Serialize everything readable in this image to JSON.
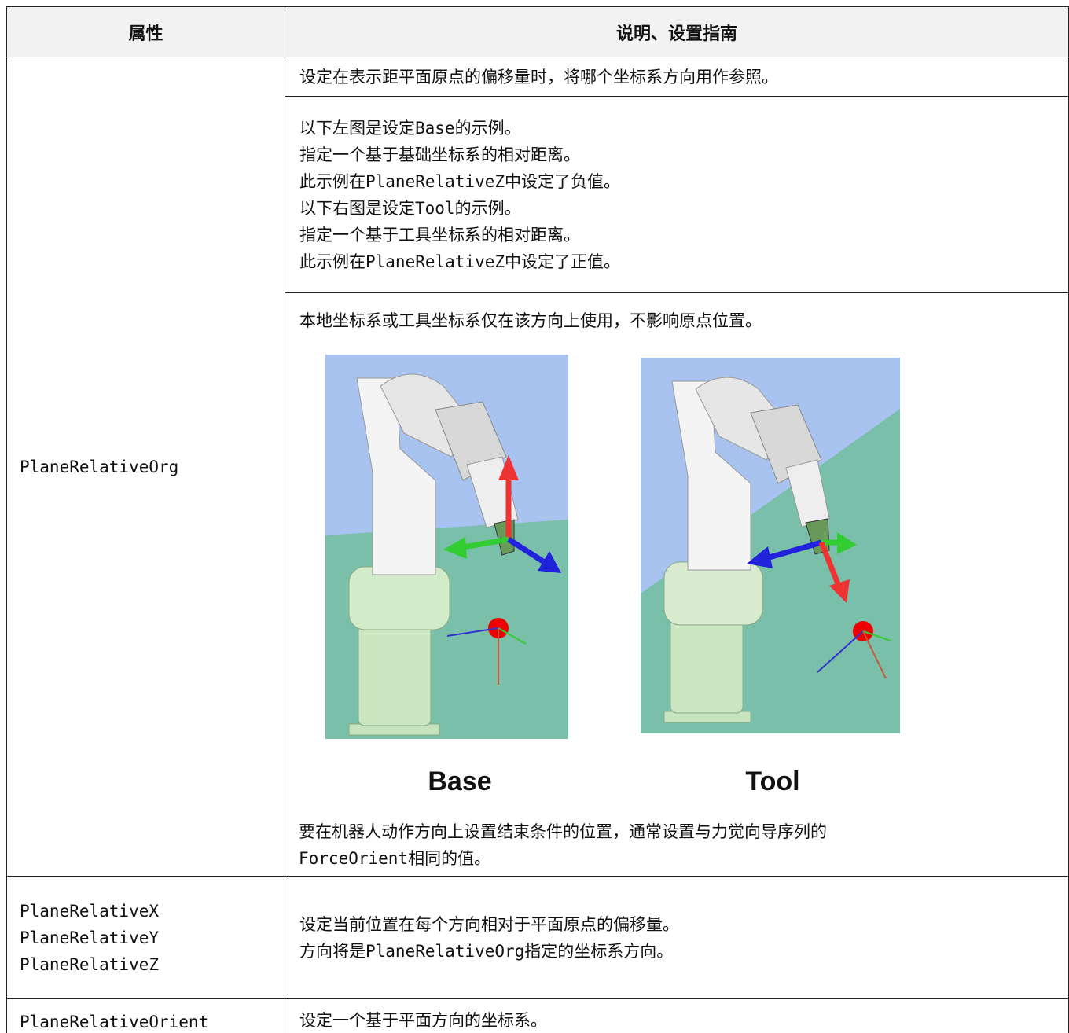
{
  "table": {
    "header": [
      "属性",
      "说明、设置指南"
    ],
    "rows": [
      {
        "property": [
          "PlaneRelativeOrg"
        ],
        "blocks": [
          {
            "lines": [
              "设定在表示距平面原点的偏移量时，将哪个坐标系方向用作参照。"
            ]
          },
          {
            "lines": [
              "以下左图是设定Base的示例。",
              "指定一个基于基础坐标系的相对距离。",
              "此示例在PlaneRelativeZ中设定了负值。",
              "以下右图是设定Tool的示例。",
              "指定一个基于工具坐标系的相对距离。",
              "此示例在PlaneRelativeZ中设定了正值。"
            ]
          },
          {
            "lines": [
              "本地坐标系或工具坐标系仅在该方向上使用，不影响原点位置。"
            ],
            "figures": [
              "Base",
              "Tool"
            ],
            "after": [
              "要在机器人动作方向上设置结束条件的位置，通常设置与力觉向导序列的",
              "ForceOrient相同的值。"
            ]
          }
        ]
      },
      {
        "property": [
          "PlaneRelativeX",
          "PlaneRelativeY",
          "PlaneRelativeZ"
        ],
        "blocks": [
          {
            "lines": [
              "设定当前位置在每个方向相对于平面原点的偏移量。",
              "方向将是PlaneRelativeOrg指定的坐标系方向。"
            ]
          }
        ]
      },
      {
        "property": [
          "PlaneRelativeOrient"
        ],
        "blocks": [
          {
            "lines": [
              "设定一个基于平面方向的坐标系。"
            ]
          }
        ]
      }
    ]
  }
}
